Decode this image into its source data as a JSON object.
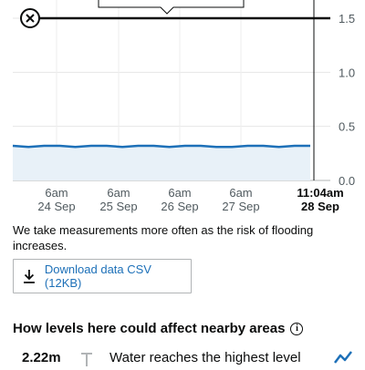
{
  "chart_data": {
    "type": "area",
    "x_labels": [
      {
        "time": "6am",
        "date": "24 Sep"
      },
      {
        "time": "6am",
        "date": "25 Sep"
      },
      {
        "time": "6am",
        "date": "26 Sep"
      },
      {
        "time": "6am",
        "date": "27 Sep"
      }
    ],
    "now_label": {
      "time": "11:04am",
      "date": "28 Sep"
    },
    "y_ticks": [
      "0.0",
      "0.5",
      "1.0",
      "1.5"
    ],
    "ylim": [
      0,
      1.5
    ],
    "threshold": {
      "value": 1.5,
      "remove_icon": "close-icon"
    },
    "series": [
      {
        "values": [
          0.32,
          0.31,
          0.32,
          0.32,
          0.31,
          0.32,
          0.32,
          0.31,
          0.32,
          0.32,
          0.31,
          0.32,
          0.32,
          0.31,
          0.31,
          0.32,
          0.32,
          0.31,
          0.32,
          0.32
        ]
      }
    ],
    "colors": {
      "line": "#1d70b8",
      "fill": "#e8f1f8",
      "threshold": "#0b0c0c"
    }
  },
  "note": "We take measurements more often as the risk of flooding increases.",
  "download": {
    "label": "Download data CSV (12KB)",
    "icon": "download-icon"
  },
  "impacts": {
    "title": "How levels here could affect nearby areas",
    "info_icon": "info-icon",
    "rows": [
      {
        "level": "2.22m",
        "text": "Water reaches the highest level",
        "trend_icon": "trend-icon"
      }
    ]
  }
}
